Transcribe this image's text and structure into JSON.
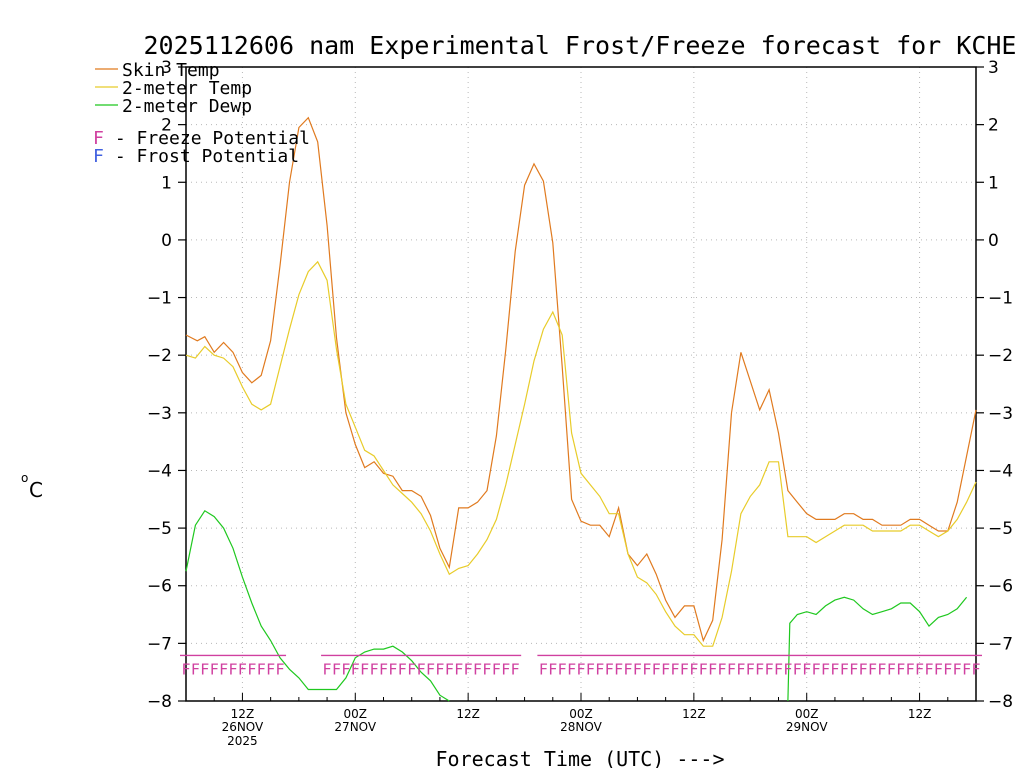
{
  "chart_data": {
    "type": "line",
    "title": "2025112606 nam Experimental Frost/Freeze forecast for KCHE",
    "xlabel": "Forecast Time (UTC) --->",
    "ylabel": "°C",
    "ylabel_base": "o",
    "ylabel_unit": "C",
    "ylim": [
      -8,
      3
    ],
    "xlim_hours": [
      0,
      84
    ],
    "grid": true,
    "y_ticks": [
      -8,
      -7,
      -6,
      -5,
      -4,
      -3,
      -2,
      -1,
      0,
      1,
      2,
      3
    ],
    "x_ticks": [
      {
        "hour": 6,
        "label": "12Z",
        "sub1": "26NOV",
        "sub2": "2025"
      },
      {
        "hour": 18,
        "label": "00Z",
        "sub1": "27NOV",
        "sub2": ""
      },
      {
        "hour": 30,
        "label": "12Z",
        "sub1": "",
        "sub2": ""
      },
      {
        "hour": 42,
        "label": "00Z",
        "sub1": "28NOV",
        "sub2": ""
      },
      {
        "hour": 54,
        "label": "12Z",
        "sub1": "",
        "sub2": ""
      },
      {
        "hour": 66,
        "label": "00Z",
        "sub1": "29NOV",
        "sub2": ""
      },
      {
        "hour": 78,
        "label": "12Z",
        "sub1": "",
        "sub2": ""
      }
    ],
    "series": [
      {
        "name": "Skin Temp",
        "color": "#e07a1f",
        "points": [
          [
            0,
            -1.65
          ],
          [
            0.6,
            -1.7
          ],
          [
            1.2,
            -1.75
          ],
          [
            2,
            -1.68
          ],
          [
            3,
            -1.95
          ],
          [
            4,
            -1.78
          ],
          [
            5,
            -1.95
          ],
          [
            6,
            -2.3
          ],
          [
            7,
            -2.48
          ],
          [
            8,
            -2.35
          ],
          [
            9,
            -1.75
          ],
          [
            10,
            -0.45
          ],
          [
            11,
            1.0
          ],
          [
            12,
            1.95
          ],
          [
            13,
            2.12
          ],
          [
            14,
            1.7
          ],
          [
            15,
            0.25
          ],
          [
            16,
            -1.7
          ],
          [
            17,
            -3.0
          ],
          [
            18,
            -3.55
          ],
          [
            19,
            -3.95
          ],
          [
            20,
            -3.85
          ],
          [
            21,
            -4.05
          ],
          [
            22,
            -4.1
          ],
          [
            23,
            -4.35
          ],
          [
            24,
            -4.35
          ],
          [
            25,
            -4.45
          ],
          [
            26,
            -4.78
          ],
          [
            27,
            -5.35
          ],
          [
            28,
            -5.68
          ],
          [
            29,
            -4.65
          ],
          [
            30,
            -4.65
          ],
          [
            31,
            -4.55
          ],
          [
            32,
            -4.35
          ],
          [
            33,
            -3.4
          ],
          [
            34,
            -1.9
          ],
          [
            35,
            -0.2
          ],
          [
            36,
            0.95
          ],
          [
            37,
            1.32
          ],
          [
            38,
            1.02
          ],
          [
            39,
            -0.05
          ],
          [
            40,
            -2.2
          ],
          [
            41,
            -4.5
          ],
          [
            42,
            -4.88
          ],
          [
            43,
            -4.95
          ],
          [
            44,
            -4.95
          ],
          [
            45,
            -5.15
          ],
          [
            46,
            -4.65
          ],
          [
            47,
            -5.45
          ],
          [
            48,
            -5.65
          ],
          [
            49,
            -5.45
          ],
          [
            50,
            -5.8
          ],
          [
            51,
            -6.25
          ],
          [
            52,
            -6.55
          ],
          [
            53,
            -6.35
          ],
          [
            54,
            -6.35
          ],
          [
            55,
            -6.95
          ],
          [
            56,
            -6.6
          ],
          [
            57,
            -5.2
          ],
          [
            58,
            -3.0
          ],
          [
            59,
            -1.95
          ],
          [
            60,
            -2.45
          ],
          [
            61,
            -2.95
          ],
          [
            62,
            -2.6
          ],
          [
            63,
            -3.35
          ],
          [
            64,
            -4.35
          ],
          [
            65,
            -4.55
          ],
          [
            66,
            -4.75
          ],
          [
            67,
            -4.85
          ],
          [
            68,
            -4.85
          ],
          [
            69,
            -4.85
          ],
          [
            70,
            -4.75
          ],
          [
            71,
            -4.75
          ],
          [
            72,
            -4.85
          ],
          [
            73,
            -4.85
          ],
          [
            74,
            -4.95
          ],
          [
            75,
            -4.95
          ],
          [
            76,
            -4.95
          ],
          [
            77,
            -4.85
          ],
          [
            78,
            -4.85
          ],
          [
            79,
            -4.95
          ],
          [
            80,
            -5.05
          ],
          [
            81,
            -5.05
          ],
          [
            82,
            -4.55
          ],
          [
            83,
            -3.75
          ],
          [
            84,
            -2.95
          ]
        ]
      },
      {
        "name": "2-meter Temp",
        "color": "#e8cc2a",
        "points": [
          [
            0,
            -2.0
          ],
          [
            1,
            -2.05
          ],
          [
            2,
            -1.85
          ],
          [
            3,
            -2.0
          ],
          [
            4,
            -2.05
          ],
          [
            5,
            -2.2
          ],
          [
            6,
            -2.55
          ],
          [
            7,
            -2.85
          ],
          [
            8,
            -2.95
          ],
          [
            9,
            -2.85
          ],
          [
            10,
            -2.2
          ],
          [
            11,
            -1.55
          ],
          [
            12,
            -0.95
          ],
          [
            13,
            -0.55
          ],
          [
            14,
            -0.38
          ],
          [
            15,
            -0.7
          ],
          [
            16,
            -1.9
          ],
          [
            17,
            -2.85
          ],
          [
            18,
            -3.25
          ],
          [
            19,
            -3.65
          ],
          [
            20,
            -3.75
          ],
          [
            21,
            -4.0
          ],
          [
            22,
            -4.25
          ],
          [
            23,
            -4.4
          ],
          [
            24,
            -4.55
          ],
          [
            25,
            -4.75
          ],
          [
            26,
            -5.05
          ],
          [
            27,
            -5.45
          ],
          [
            28,
            -5.8
          ],
          [
            29,
            -5.7
          ],
          [
            30,
            -5.65
          ],
          [
            31,
            -5.45
          ],
          [
            32,
            -5.2
          ],
          [
            33,
            -4.85
          ],
          [
            34,
            -4.25
          ],
          [
            35,
            -3.55
          ],
          [
            36,
            -2.85
          ],
          [
            37,
            -2.1
          ],
          [
            38,
            -1.55
          ],
          [
            39,
            -1.25
          ],
          [
            40,
            -1.65
          ],
          [
            41,
            -3.35
          ],
          [
            42,
            -4.05
          ],
          [
            43,
            -4.25
          ],
          [
            44,
            -4.45
          ],
          [
            45,
            -4.75
          ],
          [
            46,
            -4.75
          ],
          [
            47,
            -5.45
          ],
          [
            48,
            -5.85
          ],
          [
            49,
            -5.95
          ],
          [
            50,
            -6.15
          ],
          [
            51,
            -6.45
          ],
          [
            52,
            -6.7
          ],
          [
            53,
            -6.85
          ],
          [
            54,
            -6.85
          ],
          [
            55,
            -7.05
          ],
          [
            56,
            -7.05
          ],
          [
            57,
            -6.55
          ],
          [
            58,
            -5.75
          ],
          [
            59,
            -4.75
          ],
          [
            60,
            -4.45
          ],
          [
            61,
            -4.25
          ],
          [
            62,
            -3.85
          ],
          [
            63,
            -3.85
          ],
          [
            64,
            -5.15
          ],
          [
            65,
            -5.15
          ],
          [
            66,
            -5.15
          ],
          [
            67,
            -5.25
          ],
          [
            68,
            -5.15
          ],
          [
            69,
            -5.05
          ],
          [
            70,
            -4.95
          ],
          [
            71,
            -4.95
          ],
          [
            72,
            -4.95
          ],
          [
            73,
            -5.05
          ],
          [
            74,
            -5.05
          ],
          [
            75,
            -5.05
          ],
          [
            76,
            -5.05
          ],
          [
            77,
            -4.95
          ],
          [
            78,
            -4.95
          ],
          [
            79,
            -5.05
          ],
          [
            80,
            -5.15
          ],
          [
            81,
            -5.05
          ],
          [
            82,
            -4.85
          ],
          [
            83,
            -4.55
          ],
          [
            84,
            -4.2
          ]
        ]
      },
      {
        "name": "2-meter Dewp",
        "color": "#1fc81f",
        "points": [
          [
            0,
            -5.75
          ],
          [
            1,
            -4.95
          ],
          [
            2,
            -4.7
          ],
          [
            3,
            -4.8
          ],
          [
            4,
            -5.0
          ],
          [
            5,
            -5.35
          ],
          [
            6,
            -5.85
          ],
          [
            7,
            -6.3
          ],
          [
            8,
            -6.7
          ],
          [
            9,
            -6.95
          ],
          [
            10,
            -7.25
          ],
          [
            11,
            -7.45
          ],
          [
            12,
            -7.6
          ],
          [
            13,
            -7.8
          ],
          [
            14,
            -7.8
          ],
          [
            15,
            -7.8
          ],
          [
            16,
            -7.8
          ],
          [
            17,
            -7.6
          ],
          [
            18,
            -7.25
          ],
          [
            19,
            -7.15
          ],
          [
            20,
            -7.1
          ],
          [
            21,
            -7.1
          ],
          [
            22,
            -7.05
          ],
          [
            23,
            -7.15
          ],
          [
            24,
            -7.3
          ],
          [
            25,
            -7.5
          ],
          [
            26,
            -7.65
          ],
          [
            27,
            -7.9
          ],
          [
            28,
            -8.0
          ]
        ],
        "points2": [
          [
            64,
            -8.0
          ],
          [
            64.2,
            -6.65
          ],
          [
            65,
            -6.5
          ],
          [
            66,
            -6.45
          ],
          [
            67,
            -6.5
          ],
          [
            68,
            -6.35
          ],
          [
            69,
            -6.25
          ],
          [
            70,
            -6.2
          ],
          [
            71,
            -6.25
          ],
          [
            72,
            -6.4
          ],
          [
            73,
            -6.5
          ],
          [
            74,
            -6.45
          ],
          [
            75,
            -6.4
          ],
          [
            76,
            -6.3
          ],
          [
            77,
            -6.3
          ],
          [
            78,
            -6.45
          ],
          [
            79,
            -6.7
          ],
          [
            80,
            -6.55
          ],
          [
            81,
            -6.5
          ],
          [
            82,
            -6.4
          ],
          [
            83,
            -6.2
          ]
        ]
      }
    ],
    "freeze_segments": [
      [
        0,
        10
      ],
      [
        15,
        35
      ],
      [
        38,
        84
      ]
    ],
    "freeze_color": "#d040a0",
    "frost_color": "#4060e0",
    "legend": {
      "position": "top-left",
      "entries": [
        {
          "label": "Skin Temp",
          "color": "#e07a1f"
        },
        {
          "label": "2-meter Temp",
          "color": "#e8cc2a"
        },
        {
          "label": "2-meter Dewp",
          "color": "#1fc81f"
        }
      ],
      "potential": [
        {
          "letter": "F",
          "text": " - Freeze Potential",
          "color": "#d040a0"
        },
        {
          "letter": "F",
          "text": " - Frost Potential",
          "color": "#4060e0"
        }
      ]
    },
    "marker_letter": "F"
  }
}
